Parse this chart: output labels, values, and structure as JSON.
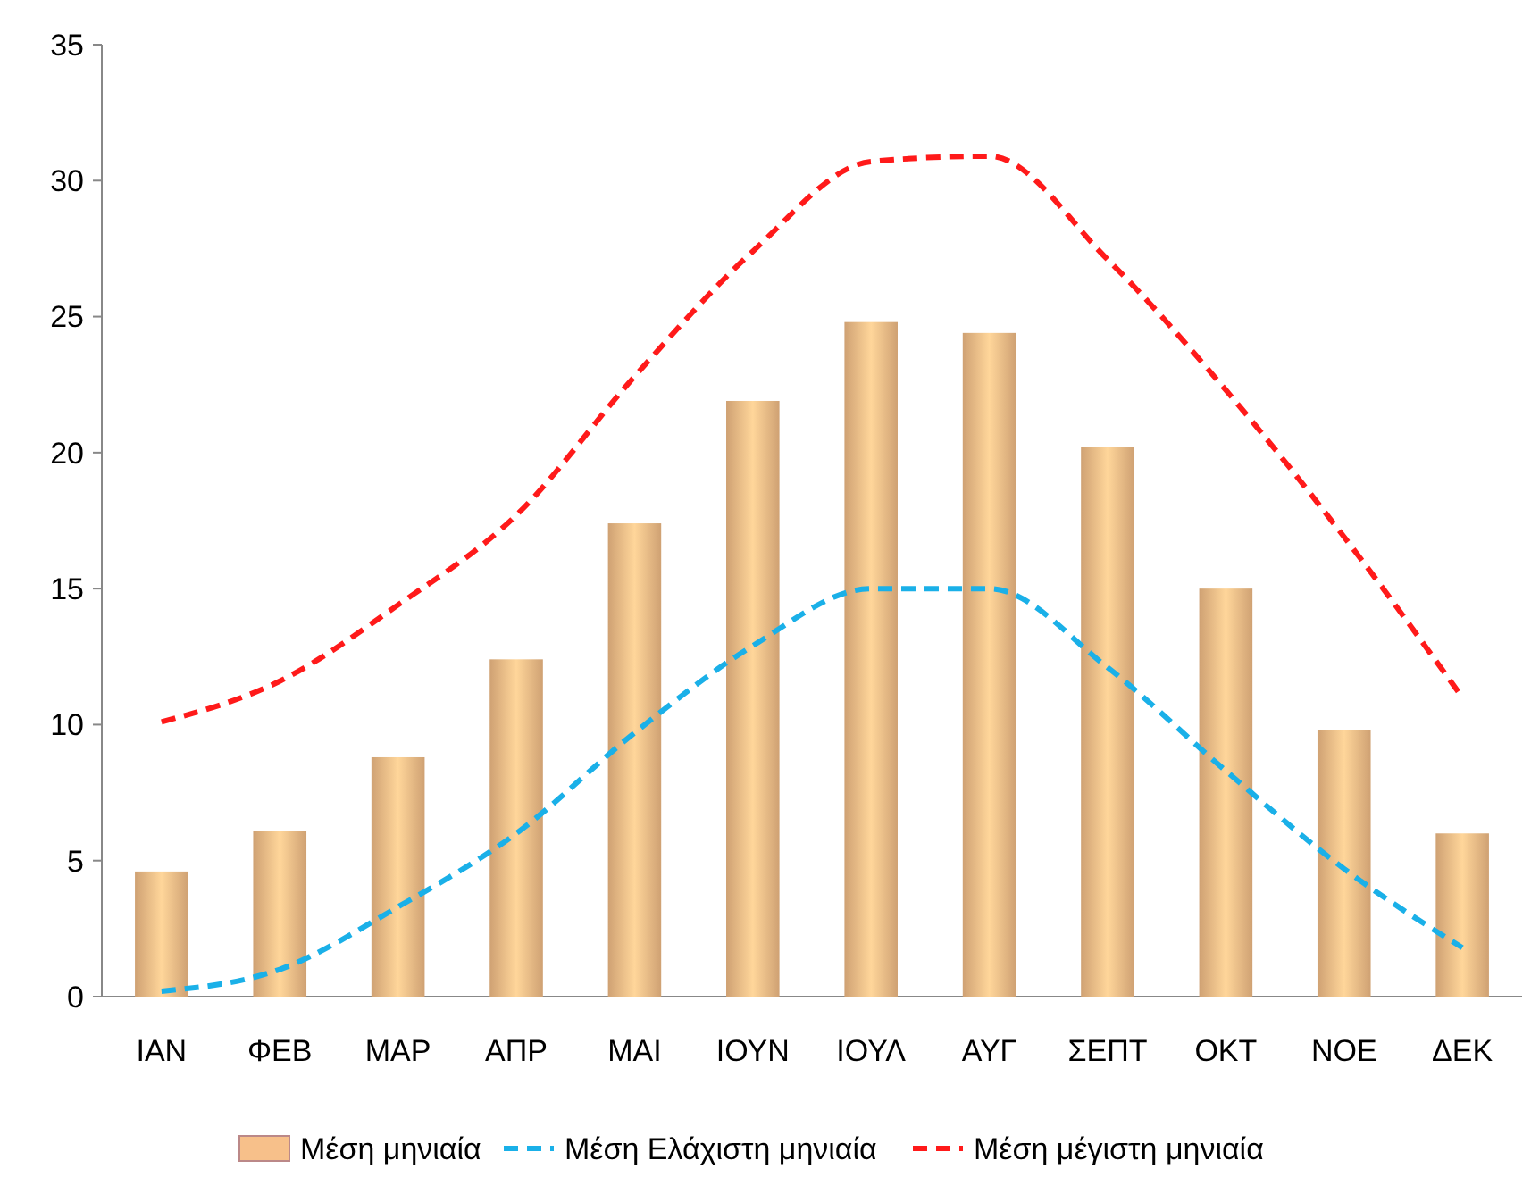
{
  "chart_data": {
    "type": "bar",
    "categories": [
      "ΙΑΝ",
      "ΦΕΒ",
      "ΜΑΡ",
      "ΑΠΡ",
      "ΜΑΙ",
      "ΙΟΥΝ",
      "ΙΟΥΛ",
      "ΑΥΓ",
      "ΣΕΠΤ",
      "ΟΚΤ",
      "ΝΟΕ",
      "ΔΕΚ"
    ],
    "series": [
      {
        "name": "Μέση μηνιαία",
        "color": "#f7c08a",
        "values": [
          4.6,
          6.1,
          8.8,
          12.4,
          17.4,
          21.9,
          24.8,
          24.4,
          20.2,
          15.0,
          9.8,
          6.0
        ]
      },
      {
        "name": "Μέση Ελάχιστη μηνιαία",
        "type": "line",
        "color": "#1ab0e8",
        "line_style": "dashed",
        "values": [
          0.2,
          1.0,
          3.3,
          6.0,
          9.7,
          12.9,
          15.0,
          15.0,
          12.1,
          8.3,
          4.7,
          1.8
        ]
      },
      {
        "name": "Μέση μέγιστη μηνιαία",
        "type": "line",
        "color": "#ff1a1a",
        "line_style": "dashed",
        "values": [
          10.1,
          11.6,
          14.4,
          17.7,
          22.8,
          27.4,
          30.7,
          30.9,
          27.1,
          22.3,
          16.9,
          11.0
        ]
      }
    ],
    "ylim": [
      0,
      35
    ],
    "yticks": [
      0,
      5,
      10,
      15,
      20,
      25,
      30,
      35
    ],
    "grid": false,
    "legend": "bottom",
    "marker": "none"
  }
}
